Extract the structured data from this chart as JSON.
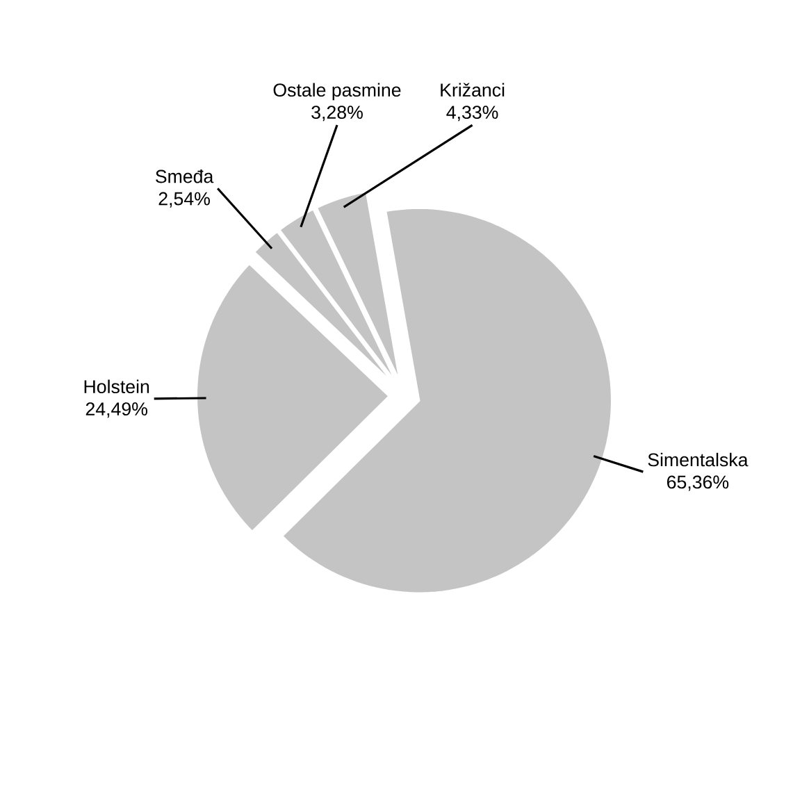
{
  "chart_data": {
    "type": "pie",
    "categories": [
      "Simentalska",
      "Holstein",
      "Smeđa",
      "Ostale pasmine",
      "Križanci"
    ],
    "values": [
      65.36,
      24.49,
      2.54,
      3.28,
      4.33
    ],
    "value_labels": [
      "65,36%",
      "24,49%",
      "2,54%",
      "3,28%",
      "4,33%"
    ],
    "colors": [
      "#c4c4c4",
      "#c4c4c4",
      "#c4c4c4",
      "#c4c4c4",
      "#c4c4c4"
    ],
    "legend": false
  }
}
